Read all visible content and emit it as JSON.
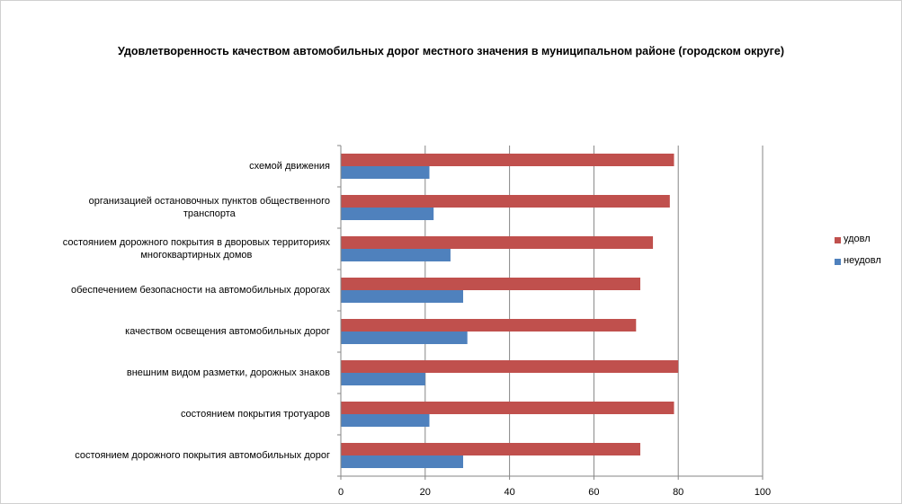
{
  "chart_data": {
    "type": "bar",
    "orientation": "horizontal",
    "title": "Удовлетворенность качеством автомобильных дорог местного значения в  муниципальном районе (городском округе)",
    "categories": [
      "схемой движения",
      "организацией остановочных пунктов общественного транспорта",
      "состоянием дорожного покрытия в дворовых территориях многоквартирных домов",
      "обеспечением  безопасности на автомобильных дорогах",
      "качеством освещения  автомобильных дорог",
      "внешним  видом разметки, дорожных знаков",
      "состоянием покрытия тротуаров",
      "состоянием дорожного покрытия автомобильных дорог"
    ],
    "category_lines": [
      [
        "схемой движения"
      ],
      [
        "организацией остановочных пунктов общественного",
        "транспорта"
      ],
      [
        "состоянием дорожного покрытия в дворовых территориях",
        "многоквартирных домов"
      ],
      [
        "обеспечением  безопасности на автомобильных дорогах"
      ],
      [
        "качеством освещения  автомобильных дорог"
      ],
      [
        "внешним  видом разметки, дорожных знаков"
      ],
      [
        "состоянием покрытия тротуаров"
      ],
      [
        "состоянием дорожного покрытия автомобильных дорог"
      ]
    ],
    "series": [
      {
        "name": "удовл",
        "color": "#c0504d",
        "values": [
          79,
          78,
          74,
          71,
          70,
          80,
          79,
          71
        ]
      },
      {
        "name": "неудовл",
        "color": "#4f81bd",
        "values": [
          21,
          22,
          26,
          29,
          30,
          20,
          21,
          29
        ]
      }
    ],
    "xlim": [
      0,
      100
    ],
    "xticks": [
      0,
      20,
      40,
      60,
      80,
      100
    ],
    "grid": true,
    "legend": "right"
  }
}
